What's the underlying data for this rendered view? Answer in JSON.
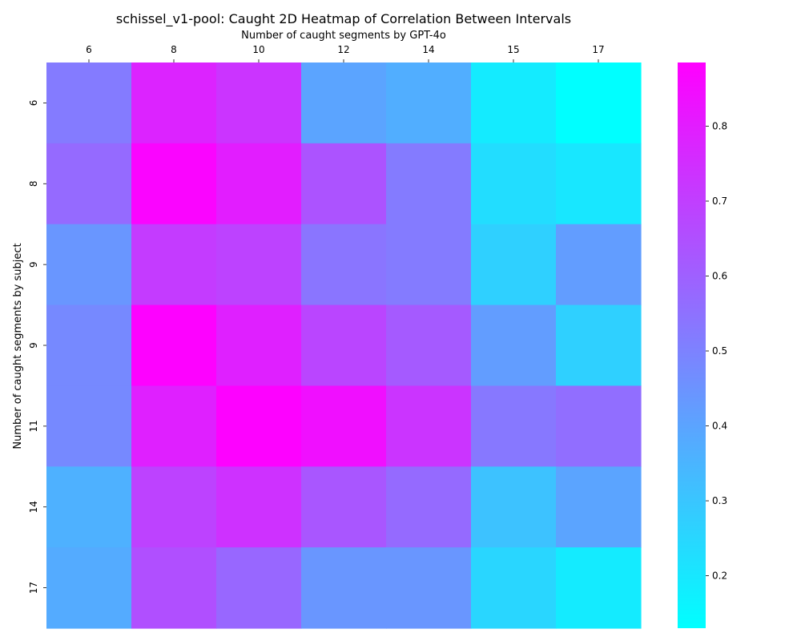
{
  "chart_data": {
    "type": "heatmap",
    "title": "schissel_v1-pool: Caught 2D Heatmap of Correlation Between Intervals",
    "xlabel": "Number of caught segments by GPT-4o",
    "ylabel": "Number of caught segments by subject",
    "x_categories": [
      "6",
      "8",
      "10",
      "12",
      "14",
      "15",
      "17"
    ],
    "y_categories": [
      "6",
      "8",
      "9",
      "9",
      "11",
      "14",
      "17"
    ],
    "values": [
      [
        0.52,
        0.78,
        0.73,
        0.4,
        0.37,
        0.19,
        0.13
      ],
      [
        0.57,
        0.87,
        0.8,
        0.64,
        0.52,
        0.23,
        0.2
      ],
      [
        0.44,
        0.71,
        0.69,
        0.54,
        0.52,
        0.27,
        0.42
      ],
      [
        0.48,
        0.88,
        0.79,
        0.68,
        0.62,
        0.42,
        0.27
      ],
      [
        0.48,
        0.79,
        0.88,
        0.84,
        0.73,
        0.53,
        0.56
      ],
      [
        0.36,
        0.69,
        0.74,
        0.63,
        0.57,
        0.31,
        0.4
      ],
      [
        0.38,
        0.65,
        0.58,
        0.44,
        0.44,
        0.25,
        0.19
      ]
    ],
    "colormap": "cool",
    "color_min": "#00ffff",
    "color_max": "#ff00ff",
    "vmin": 0.13,
    "vmax": 0.885,
    "colorbar_ticks": [
      0.2,
      0.3,
      0.4,
      0.5,
      0.6,
      0.7,
      0.8
    ],
    "x_tick_position": "top",
    "grid": false
  }
}
